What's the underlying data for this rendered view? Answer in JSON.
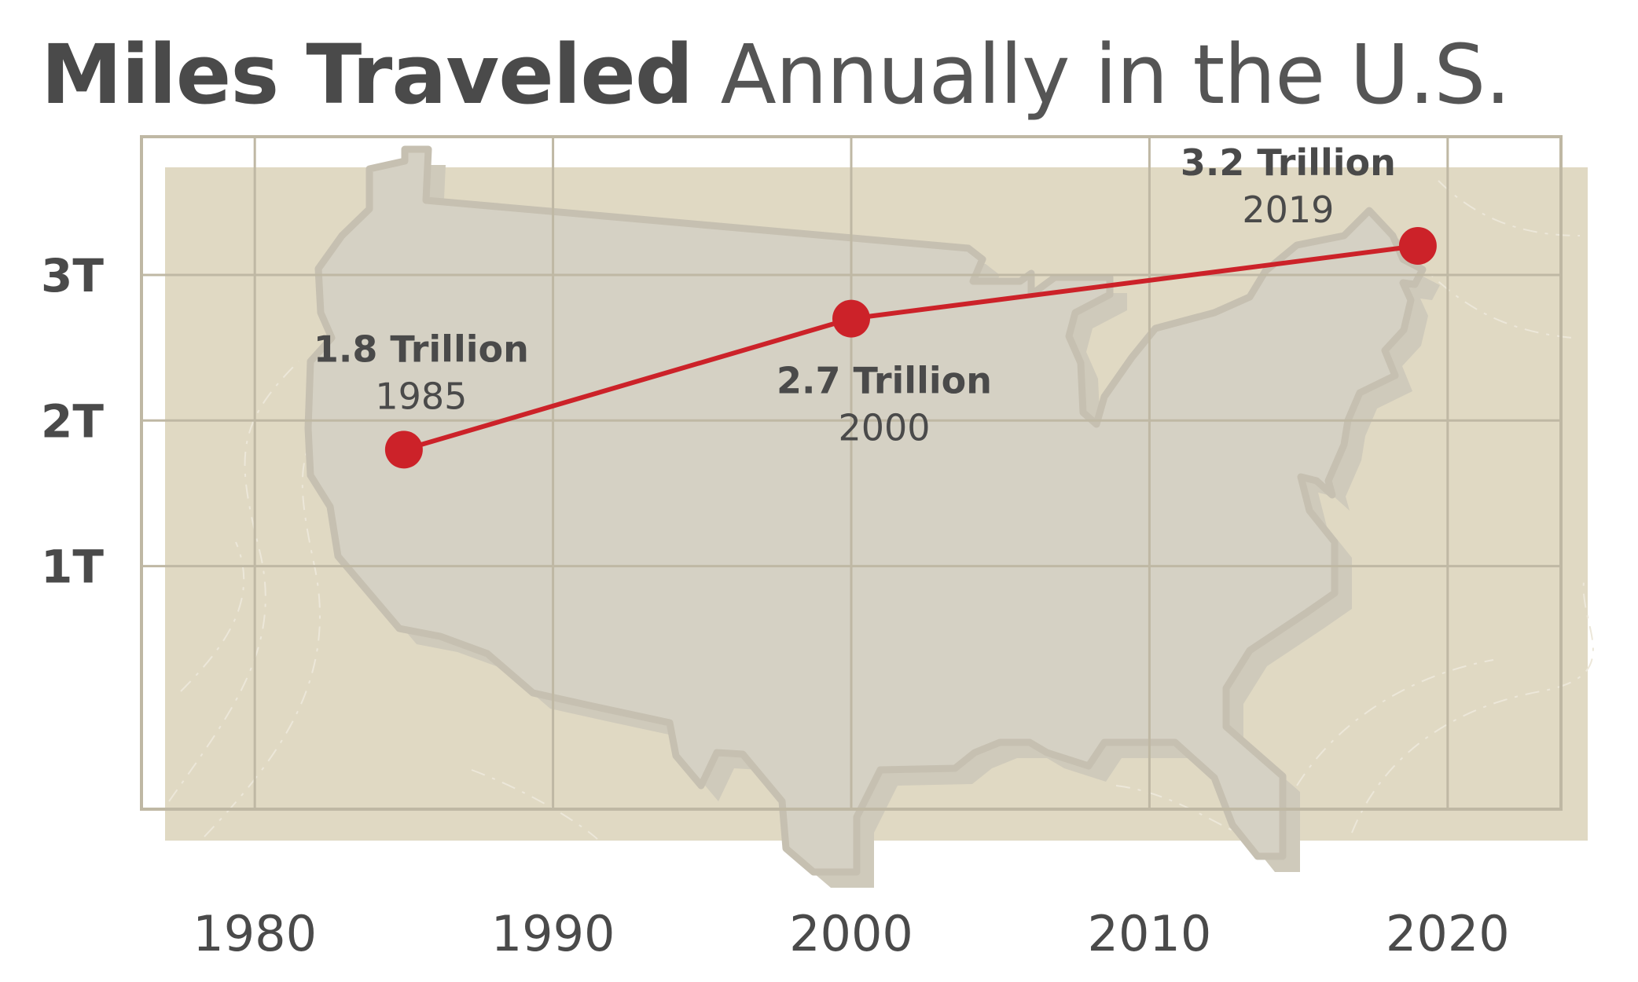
{
  "title": {
    "bold": "Miles Traveled",
    "light": "Annually in the U.S."
  },
  "colors": {
    "background_map": "#e0d9c3",
    "us_shape": "#d5d1c4",
    "us_outline": "#c6c0b1",
    "grid": "#bfb8a4",
    "line": "#cc2229",
    "text": "#4a4a4a"
  },
  "chart_data": {
    "type": "line",
    "title": "Miles Traveled Annually in the U.S.",
    "xlabel": "",
    "ylabel": "",
    "x_ticks": [
      "1980",
      "1990",
      "2000",
      "2010",
      "2020"
    ],
    "x_tick_values": [
      1980,
      1990,
      2000,
      2010,
      2020
    ],
    "y_ticks": [
      "1T",
      "2T",
      "3T"
    ],
    "y_tick_values": [
      1,
      2,
      3
    ],
    "xlim": [
      1976.2,
      2023.8
    ],
    "ylim": [
      -0.67,
      3.95
    ],
    "grid": true,
    "legend": "none",
    "series": [
      {
        "points": [
          {
            "x": 1985,
            "y": 1.8,
            "label": "1.8 Trillion",
            "year": "1985"
          },
          {
            "x": 2000,
            "y": 2.7,
            "label": "2.7 Trillion",
            "year": "2000"
          },
          {
            "x": 2019,
            "y": 3.2,
            "label": "3.2 Trillion",
            "year": "2019"
          }
        ]
      }
    ]
  }
}
